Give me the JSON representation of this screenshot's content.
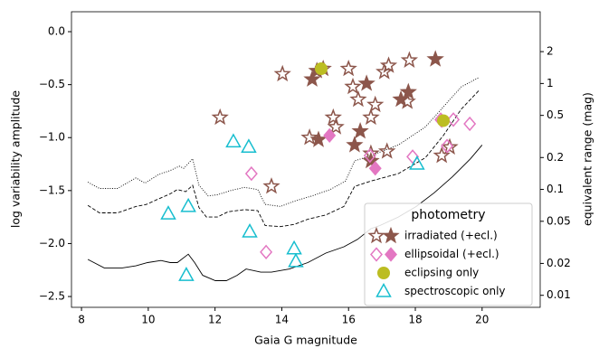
{
  "chart_data": {
    "type": "scatter",
    "xlabel": "Gaia G magnitude",
    "ylabel": "log variability amplitude",
    "y2label": "equivalent range (mag)",
    "xlim": [
      7.7,
      21.74
    ],
    "ylim": [
      -2.602,
      0.188
    ],
    "y2lim": [
      0.0077,
      4.76
    ],
    "y2scale": "log",
    "xticks": [
      8,
      10,
      12,
      14,
      16,
      18,
      20
    ],
    "yticks": [
      {
        "value": 0,
        "label": "0.0"
      },
      {
        "value": -0.5,
        "label": "−0.5"
      },
      {
        "value": -1,
        "label": "−1.0"
      },
      {
        "value": -1.5,
        "label": "−1.5"
      },
      {
        "value": -2,
        "label": "−2.0"
      },
      {
        "value": -2.5,
        "label": "−2.5"
      }
    ],
    "y2ticks": [
      2,
      1,
      0.5,
      0.2,
      0.1,
      0.05,
      0.02,
      0.01
    ],
    "legend_title": "photometry",
    "legend_loc": "lower right",
    "series": [
      {
        "name": "irradiated (+ecl.)",
        "marker": "star",
        "color": "#8c564b",
        "x": [
          12.15,
          14.02,
          13.69,
          14.83,
          15.24,
          15.62,
          15.54,
          16.0,
          16.13,
          16.29,
          16.67,
          16.8,
          17.07,
          17.2,
          17.15,
          16.67,
          17.76,
          17.82,
          18.79,
          19.03,
          14.91,
          15.05,
          15.1,
          16.54,
          16.18,
          16.35,
          16.67,
          17.57,
          17.79,
          18.6
        ],
        "values": [
          -0.81,
          -0.4,
          -1.46,
          -1.0,
          -0.35,
          -0.9,
          -0.81,
          -0.35,
          -0.52,
          -0.64,
          -0.81,
          -0.69,
          -0.38,
          -0.32,
          -1.13,
          -1.15,
          -0.66,
          -0.27,
          -1.17,
          -1.09,
          -0.45,
          -0.37,
          -1.02,
          -0.49,
          -1.07,
          -0.94,
          -1.22,
          -0.64,
          -0.57,
          -0.26
        ],
        "filled": [
          false,
          false,
          false,
          false,
          false,
          false,
          false,
          false,
          false,
          false,
          false,
          false,
          false,
          false,
          false,
          false,
          false,
          false,
          false,
          false,
          true,
          true,
          true,
          true,
          true,
          true,
          true,
          true,
          true,
          true
        ]
      },
      {
        "name": "ellipsoidal (+ecl.)",
        "marker": "diamond",
        "color": "#e377c2",
        "x": [
          13.09,
          13.53,
          16.64,
          17.92,
          18.76,
          18.95,
          19.14,
          19.63,
          15.43,
          16.8,
          18.79
        ],
        "values": [
          -1.34,
          -2.08,
          -1.17,
          -1.18,
          -0.83,
          -1.08,
          -0.83,
          -0.87,
          -0.98,
          -1.29,
          -0.84
        ],
        "filled": [
          false,
          false,
          false,
          false,
          false,
          false,
          false,
          false,
          true,
          true,
          true
        ]
      },
      {
        "name": "eclipsing only",
        "marker": "circle",
        "color": "#bcbd22",
        "x": [
          15.18,
          18.84
        ],
        "values": [
          -0.35,
          -0.84
        ]
      },
      {
        "name": "spectroscopic only",
        "marker": "triangle",
        "color": "#17becf",
        "x": [
          10.6,
          11.2,
          11.14,
          12.55,
          13.01,
          13.04,
          14.37,
          14.42,
          18.05
        ],
        "values": [
          -1.72,
          -1.65,
          -2.3,
          -1.04,
          -1.09,
          -1.89,
          -2.05,
          -2.17,
          -1.25
        ]
      }
    ],
    "lines": [
      {
        "style": "solid",
        "color": "#000000",
        "x": [
          8.19,
          8.68,
          9.22,
          9.63,
          9.98,
          10.38,
          10.66,
          10.87,
          11.2,
          11.39,
          11.63,
          12.01,
          12.34,
          12.66,
          12.93,
          13.37,
          13.69,
          14.23,
          14.78,
          15.32,
          15.86,
          16.27,
          16.67,
          16.94,
          17.49,
          18.03,
          18.57,
          19.11,
          19.65,
          20.0
        ],
        "values": [
          -2.15,
          -2.23,
          -2.23,
          -2.21,
          -2.18,
          -2.16,
          -2.18,
          -2.18,
          -2.1,
          -2.18,
          -2.3,
          -2.35,
          -2.35,
          -2.3,
          -2.24,
          -2.27,
          -2.27,
          -2.24,
          -2.18,
          -2.09,
          -2.03,
          -1.96,
          -1.86,
          -1.83,
          -1.75,
          -1.65,
          -1.52,
          -1.37,
          -1.2,
          -1.07
        ]
      },
      {
        "style": "dashed",
        "color": "#000000",
        "x": [
          8.19,
          8.54,
          9.08,
          9.63,
          9.95,
          10.3,
          10.66,
          10.87,
          11.12,
          11.33,
          11.52,
          11.74,
          12.07,
          12.39,
          12.88,
          13.28,
          13.5,
          13.96,
          14.37,
          14.78,
          15.32,
          15.86,
          16.18,
          16.67,
          17.49,
          18.3,
          18.84,
          19.38,
          19.92
        ],
        "values": [
          -1.64,
          -1.71,
          -1.71,
          -1.65,
          -1.63,
          -1.58,
          -1.53,
          -1.49,
          -1.51,
          -1.45,
          -1.66,
          -1.75,
          -1.75,
          -1.7,
          -1.68,
          -1.69,
          -1.83,
          -1.84,
          -1.82,
          -1.77,
          -1.73,
          -1.65,
          -1.46,
          -1.41,
          -1.34,
          -1.19,
          -0.98,
          -0.73,
          -0.55
        ]
      },
      {
        "style": "dotted",
        "color": "#000000",
        "x": [
          8.19,
          8.54,
          9.08,
          9.63,
          9.9,
          10.3,
          10.66,
          10.93,
          11.06,
          11.33,
          11.52,
          11.79,
          12.07,
          12.47,
          12.88,
          13.28,
          13.5,
          13.96,
          14.37,
          14.91,
          15.45,
          15.91,
          16.18,
          16.67,
          17.49,
          18.3,
          18.84,
          19.38,
          19.92
        ],
        "values": [
          -1.42,
          -1.48,
          -1.48,
          -1.38,
          -1.43,
          -1.35,
          -1.31,
          -1.27,
          -1.29,
          -1.2,
          -1.45,
          -1.55,
          -1.54,
          -1.5,
          -1.47,
          -1.49,
          -1.63,
          -1.65,
          -1.6,
          -1.55,
          -1.49,
          -1.41,
          -1.22,
          -1.17,
          -1.07,
          -0.9,
          -0.71,
          -0.52,
          -0.43
        ]
      }
    ]
  }
}
